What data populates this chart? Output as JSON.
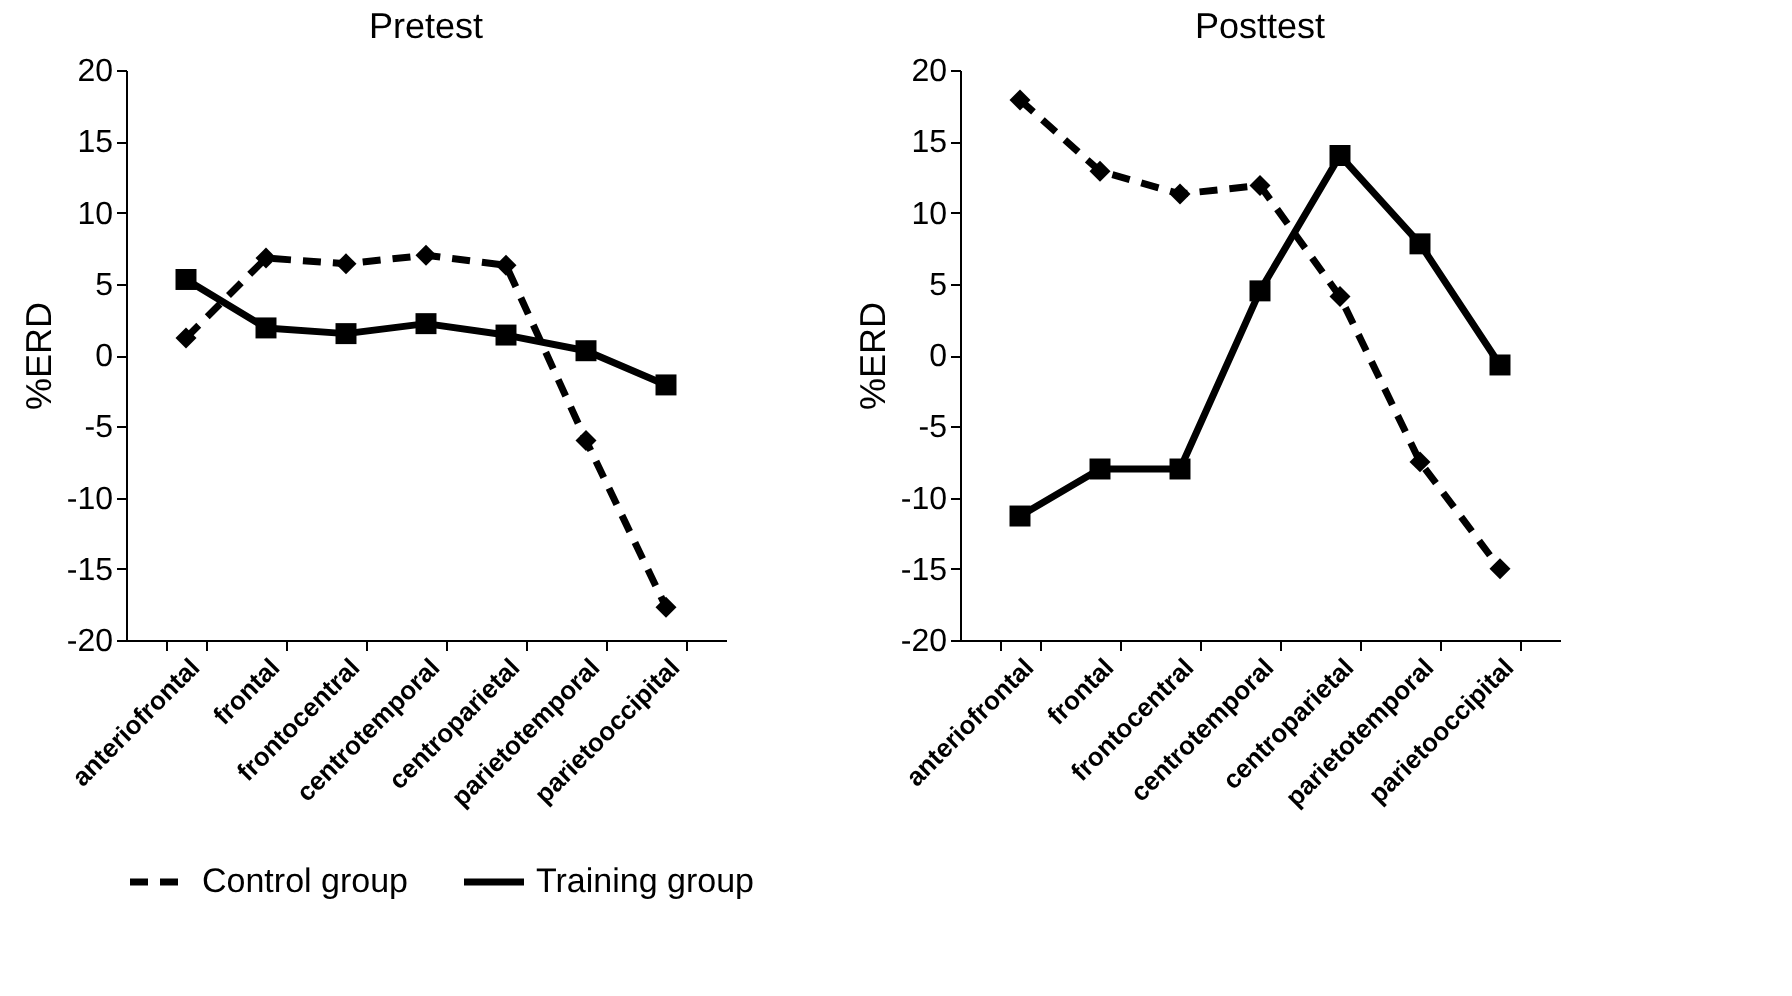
{
  "chart_data": [
    {
      "type": "line",
      "title": "Pretest",
      "ylabel": "%ERD",
      "categories": [
        "anteriofrontal",
        "frontal",
        "frontocentral",
        "centrotemporal",
        "centroparietal",
        "parietotemporal",
        "parietooccipital"
      ],
      "series": [
        {
          "name": "Control group",
          "color": "#000000",
          "marker": "diamond",
          "line_style": "dashed",
          "values": [
            1.2,
            6.8,
            6.4,
            7.0,
            6.3,
            -6.0,
            -17.7
          ]
        },
        {
          "name": "Training group",
          "color": "#000000",
          "marker": "square",
          "line_style": "solid",
          "values": [
            5.3,
            1.9,
            1.5,
            2.2,
            1.4,
            0.3,
            -2.1
          ]
        }
      ],
      "ylim": [
        -20,
        20
      ],
      "yticks": [
        -20,
        -15,
        -10,
        -5,
        0,
        5,
        10,
        15,
        20
      ],
      "legend": "bottom"
    },
    {
      "type": "line",
      "title": "Posttest",
      "ylabel": "%ERD",
      "categories": [
        "anteriofrontal",
        "frontal",
        "frontocentral",
        "centrotemporal",
        "centroparietal",
        "parietotemporal",
        "parietooccipital"
      ],
      "series": [
        {
          "color": "#000000",
          "marker": "diamond",
          "line_style": "dashed",
          "values": [
            17.9,
            12.9,
            11.3,
            11.9,
            4.1,
            -7.5,
            -15.0
          ]
        },
        {
          "color": "#000000",
          "marker": "square",
          "line_style": "solid",
          "values": [
            -11.3,
            -8.0,
            -8.0,
            4.5,
            14.0,
            7.8,
            -0.7
          ]
        }
      ],
      "ylim": [
        -20,
        20
      ],
      "yticks": [
        -20,
        -15,
        -10,
        -5,
        0,
        5,
        10,
        15,
        20
      ]
    }
  ]
}
